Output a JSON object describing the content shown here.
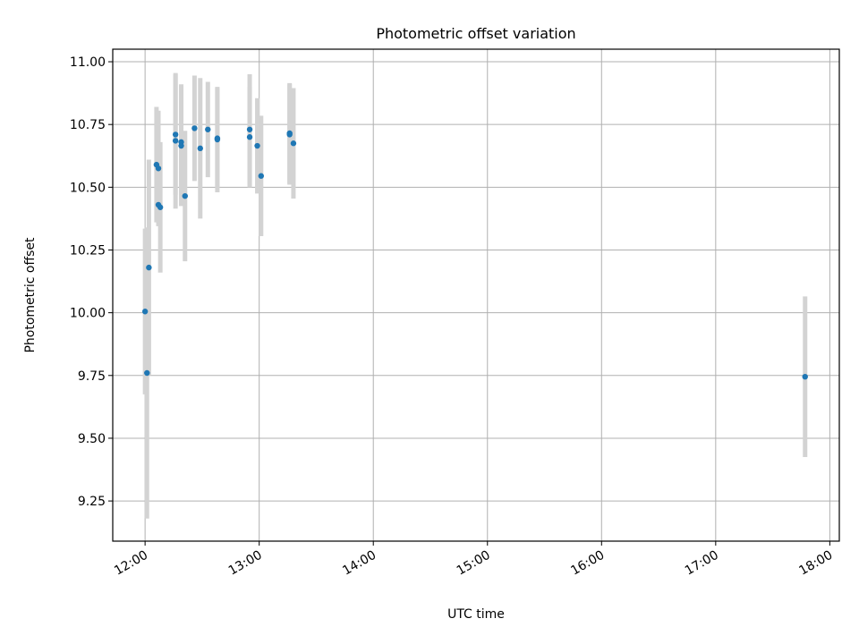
{
  "chart_data": {
    "type": "scatter",
    "title": "Photometric offset variation",
    "xlabel": "UTC time",
    "ylabel": "Photometric offset",
    "xlim": [
      "11:43",
      "18:05"
    ],
    "ylim": [
      9.09,
      11.05
    ],
    "x_ticks": [
      "12:00",
      "13:00",
      "14:00",
      "15:00",
      "16:00",
      "17:00",
      "18:00"
    ],
    "y_ticks": [
      "9.25",
      "9.50",
      "9.75",
      "10.00",
      "10.25",
      "10.50",
      "10.75",
      "11.00"
    ],
    "grid": true,
    "colors": {
      "point": "#1f77b4",
      "errorbar": "#d3d3d3",
      "grid": "#b0b0b0"
    },
    "points": [
      {
        "x": "12:00",
        "y": 10.005,
        "err": 0.33
      },
      {
        "x": "12:01",
        "y": 9.76,
        "err": 0.58
      },
      {
        "x": "12:02",
        "y": 10.18,
        "err": 0.43
      },
      {
        "x": "12:06",
        "y": 10.59,
        "err": 0.23
      },
      {
        "x": "12:07",
        "y": 10.575,
        "err": 0.23
      },
      {
        "x": "12:07",
        "y": 10.43,
        "err": 0.08
      },
      {
        "x": "12:08",
        "y": 10.42,
        "err": 0.26
      },
      {
        "x": "12:16",
        "y": 10.71,
        "err": 0.24
      },
      {
        "x": "12:16",
        "y": 10.685,
        "err": 0.27
      },
      {
        "x": "12:19",
        "y": 10.68,
        "err": 0.23
      },
      {
        "x": "12:19",
        "y": 10.665,
        "err": 0.24
      },
      {
        "x": "12:21",
        "y": 10.465,
        "err": 0.26
      },
      {
        "x": "12:26",
        "y": 10.735,
        "err": 0.21
      },
      {
        "x": "12:29",
        "y": 10.655,
        "err": 0.28
      },
      {
        "x": "12:33",
        "y": 10.73,
        "err": 0.19
      },
      {
        "x": "12:38",
        "y": 10.695,
        "err": 0.2
      },
      {
        "x": "12:38",
        "y": 10.69,
        "err": 0.21
      },
      {
        "x": "12:55",
        "y": 10.7,
        "err": 0.2
      },
      {
        "x": "12:55",
        "y": 10.73,
        "err": 0.22
      },
      {
        "x": "12:59",
        "y": 10.665,
        "err": 0.19
      },
      {
        "x": "13:01",
        "y": 10.545,
        "err": 0.24
      },
      {
        "x": "13:16",
        "y": 10.715,
        "err": 0.2
      },
      {
        "x": "13:16",
        "y": 10.71,
        "err": 0.2
      },
      {
        "x": "13:18",
        "y": 10.675,
        "err": 0.22
      },
      {
        "x": "17:47",
        "y": 9.745,
        "err": 0.32
      }
    ]
  }
}
